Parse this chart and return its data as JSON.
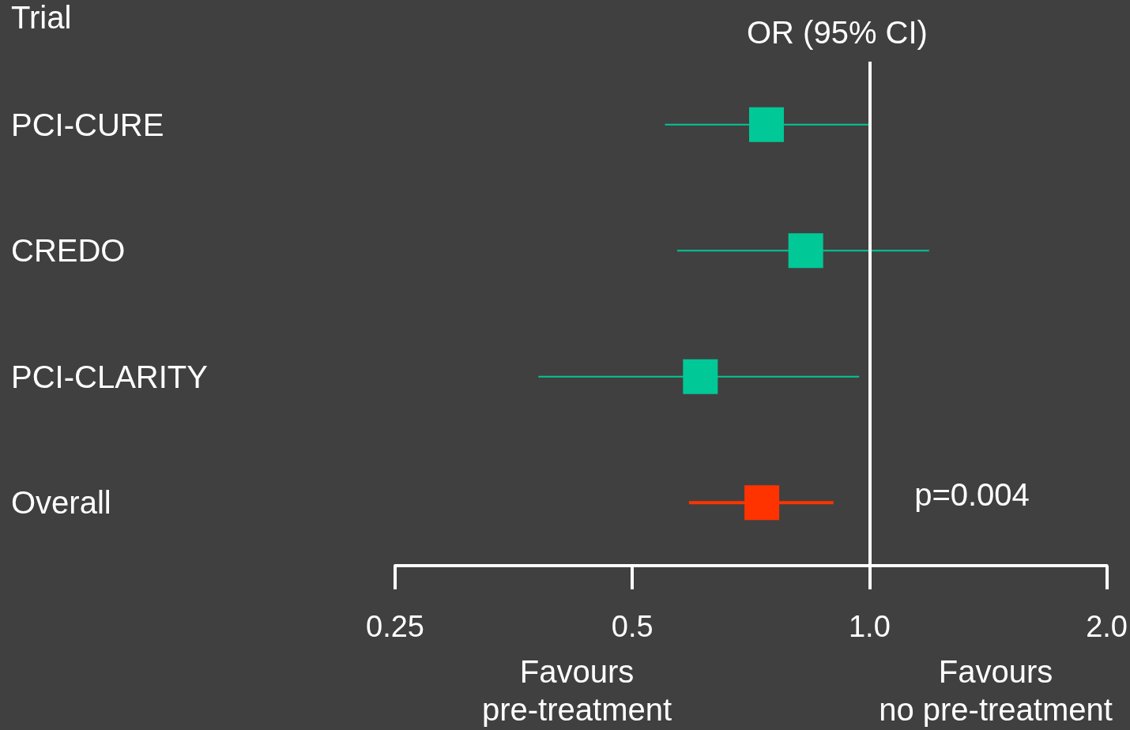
{
  "chart_data": {
    "type": "scatter",
    "orientation": "horizontal",
    "title": "OR (95% CI)",
    "ylabel": "Trial",
    "categories": [
      "PCI-CURE",
      "CREDO",
      "PCI-CLARITY",
      "Overall"
    ],
    "values": [
      0.74,
      0.83,
      0.61,
      0.73
    ],
    "errors": [
      [
        0.55,
        1.0
      ],
      [
        0.57,
        1.19
      ],
      [
        0.38,
        0.97
      ],
      [
        0.59,
        0.9
      ]
    ],
    "colors": [
      "#00c896",
      "#00c896",
      "#00c896",
      "#ff3300"
    ],
    "marker": "square",
    "log": "x",
    "xlim": [
      0.25,
      2.0
    ],
    "xticks": [
      0.25,
      0.5,
      {
        "value": 1,
        "label": "1.0"
      },
      {
        "value": 2,
        "label": "2.0"
      }
    ],
    "ref_lines": [
      {
        "axis": "x",
        "value": 1,
        "color": "#ffffff"
      }
    ],
    "annotations": [
      "p=0.004",
      "Favours\npre-treatment",
      "Favours\nno pre-treatment"
    ],
    "grid": false
  }
}
